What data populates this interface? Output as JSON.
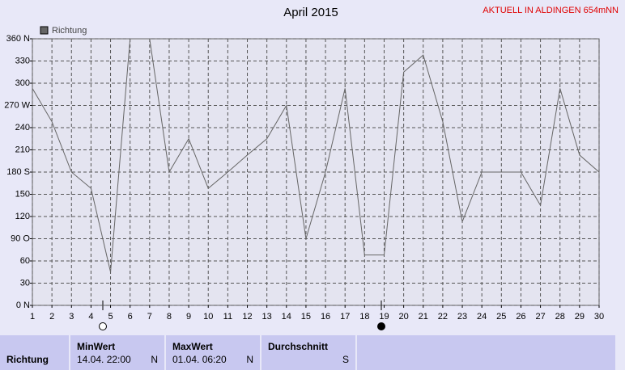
{
  "chart_data": {
    "type": "line",
    "title": "April 2015",
    "subtitle": "AKTUELL IN ALDINGEN 654mNN",
    "x": [
      1,
      2,
      3,
      4,
      5,
      6,
      7,
      8,
      9,
      10,
      11,
      12,
      13,
      14,
      15,
      16,
      17,
      18,
      19,
      20,
      21,
      22,
      23,
      24,
      25,
      26,
      27,
      28,
      29,
      30
    ],
    "series": [
      {
        "name": "Richtung",
        "color": "#666666",
        "values": [
          293,
          248,
          180,
          158,
          45,
          360,
          360,
          180,
          225,
          158,
          180,
          203,
          225,
          270,
          90,
          180,
          293,
          68,
          68,
          315,
          338,
          248,
          113,
          180,
          180,
          180,
          135,
          293,
          203,
          180
        ]
      }
    ],
    "xlim": [
      1,
      30
    ],
    "xticks": [
      1,
      2,
      3,
      4,
      5,
      6,
      7,
      8,
      9,
      10,
      11,
      12,
      13,
      14,
      15,
      16,
      17,
      18,
      19,
      20,
      21,
      22,
      23,
      24,
      25,
      26,
      27,
      28,
      29,
      30
    ],
    "ylim": [
      0,
      360
    ],
    "yticks": [
      {
        "value": 0,
        "label": "0 N"
      },
      30,
      60,
      {
        "value": 90,
        "label": "90 O"
      },
      120,
      150,
      {
        "value": 180,
        "label": "180 S"
      },
      210,
      240,
      {
        "value": 270,
        "label": "270 W"
      },
      300,
      330,
      {
        "value": 360,
        "label": "360 N"
      }
    ],
    "grid": true,
    "legend": "top-left"
  },
  "table": {
    "row_label": "Richtung",
    "columns": [
      {
        "header": "MinWert",
        "date": "14.04.  22:00",
        "value": "N"
      },
      {
        "header": "MaxWert",
        "date": "01.04.  06:20",
        "value": "N"
      },
      {
        "header": "Durchschnitt",
        "date": "",
        "value": "S"
      }
    ]
  }
}
